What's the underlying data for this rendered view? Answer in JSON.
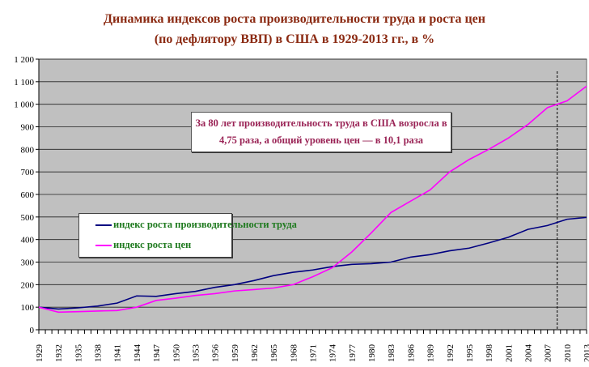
{
  "chart_data": {
    "type": "line",
    "title": [
      "Динамика индексов роста производительности труда и  роста цен",
      "(по дефлятору ВВП) в США в 1929-2013 гг., в %"
    ],
    "xlabel": "",
    "ylabel": "",
    "ylim": [
      0,
      1200
    ],
    "yticks": [
      0,
      100,
      200,
      300,
      400,
      500,
      600,
      700,
      800,
      900,
      1000,
      1100,
      1200
    ],
    "ytick_labels": [
      "0",
      "100",
      "200",
      "300",
      "400",
      "500",
      "600",
      "700",
      "800",
      "900",
      "1 000",
      "1 100",
      "1 200"
    ],
    "x": [
      1929,
      1932,
      1935,
      1938,
      1941,
      1944,
      1947,
      1950,
      1953,
      1956,
      1959,
      1962,
      1965,
      1968,
      1971,
      1974,
      1977,
      1980,
      1983,
      1986,
      1989,
      1992,
      1995,
      1998,
      2001,
      2004,
      2007,
      2010,
      2013
    ],
    "xlim": [
      1929,
      2013
    ],
    "grid": true,
    "legend_position": "middle-left",
    "series": [
      {
        "name": "индекс роста производительности труда",
        "color": "#000080",
        "values": [
          100,
          92,
          97,
          105,
          118,
          150,
          148,
          160,
          170,
          188,
          200,
          218,
          240,
          255,
          265,
          280,
          290,
          293,
          300,
          322,
          333,
          350,
          362,
          385,
          410,
          445,
          462,
          490,
          498
        ]
      },
      {
        "name": "индекс роста цен",
        "color": "#ff00ff",
        "values": [
          100,
          78,
          80,
          83,
          85,
          100,
          130,
          140,
          152,
          160,
          172,
          178,
          185,
          200,
          235,
          275,
          345,
          430,
          520,
          570,
          620,
          700,
          755,
          800,
          850,
          910,
          985,
          1015,
          1080
        ]
      }
    ],
    "vertical_marker_x": 2008.5,
    "annotation": [
      "За 80 лет производительность труда в США возросла в",
      "4,75 раза, а общий уровень цен — в 10,1 раза"
    ],
    "colors": {
      "plot_bg": "#c0c0c0",
      "grid": "#202020",
      "title": "#8b2a12",
      "annotation": "#9a2456",
      "legend_text": "#1f7a1f"
    }
  }
}
